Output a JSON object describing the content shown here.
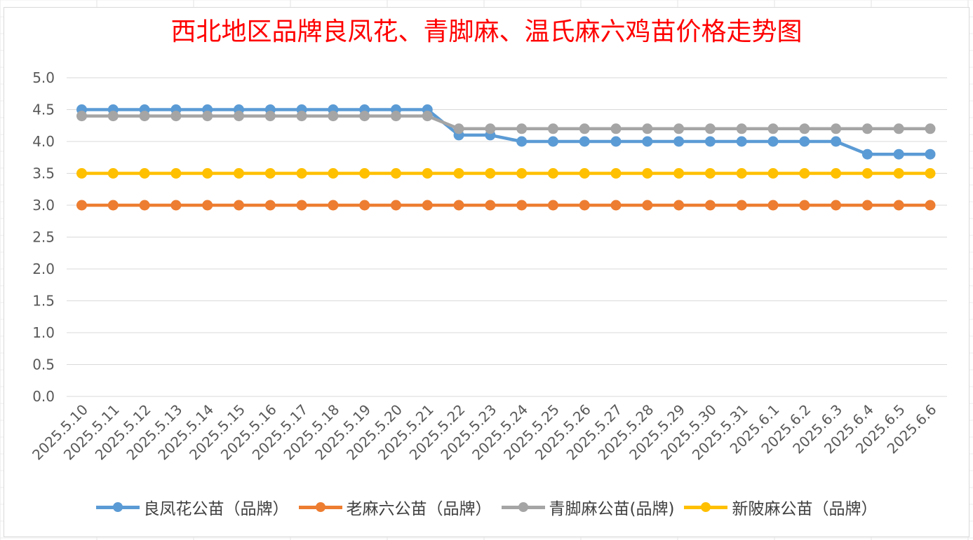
{
  "chart_data": {
    "type": "line",
    "title": "西北地区品牌良凤花、青脚麻、温氏麻六鸡苗价格走势图",
    "xlabel": "",
    "ylabel": "",
    "ylim": [
      0,
      5
    ],
    "yticks": [
      "0.0",
      "0.5",
      "1.0",
      "1.5",
      "2.0",
      "2.5",
      "3.0",
      "3.5",
      "4.0",
      "4.5",
      "5.0"
    ],
    "grid": true,
    "legend_position": "bottom",
    "categories": [
      "2025.5.10",
      "2025.5.11",
      "2025.5.12",
      "2025.5.13",
      "2025.5.14",
      "2025.5.15",
      "2025.5.16",
      "2025.5.17",
      "2025.5.18",
      "2025.5.19",
      "2025.5.20",
      "2025.5.21",
      "2025.5.22",
      "2025.5.23",
      "2025.5.24",
      "2025.5.25",
      "2025.5.26",
      "2025.5.27",
      "2025.5.28",
      "2025.5.29",
      "2025.5.30",
      "2025.5.31",
      "2025.6.1",
      "2025.6.2",
      "2025.6.3",
      "2025.6.4",
      "2025.6.5",
      "2025.6.6"
    ],
    "series": [
      {
        "name": "良凤花公苗（品牌）",
        "color": "#5b9bd5",
        "values": [
          4.5,
          4.5,
          4.5,
          4.5,
          4.5,
          4.5,
          4.5,
          4.5,
          4.5,
          4.5,
          4.5,
          4.5,
          4.1,
          4.1,
          4.0,
          4.0,
          4.0,
          4.0,
          4.0,
          4.0,
          4.0,
          4.0,
          4.0,
          4.0,
          4.0,
          3.8,
          3.8,
          3.8
        ]
      },
      {
        "name": "老麻六公苗（品牌）",
        "color": "#ed7d31",
        "values": [
          3.0,
          3.0,
          3.0,
          3.0,
          3.0,
          3.0,
          3.0,
          3.0,
          3.0,
          3.0,
          3.0,
          3.0,
          3.0,
          3.0,
          3.0,
          3.0,
          3.0,
          3.0,
          3.0,
          3.0,
          3.0,
          3.0,
          3.0,
          3.0,
          3.0,
          3.0,
          3.0,
          3.0
        ]
      },
      {
        "name": "青脚麻公苗(品牌)",
        "color": "#a5a5a5",
        "values": [
          4.4,
          4.4,
          4.4,
          4.4,
          4.4,
          4.4,
          4.4,
          4.4,
          4.4,
          4.4,
          4.4,
          4.4,
          4.2,
          4.2,
          4.2,
          4.2,
          4.2,
          4.2,
          4.2,
          4.2,
          4.2,
          4.2,
          4.2,
          4.2,
          4.2,
          4.2,
          4.2,
          4.2
        ]
      },
      {
        "name": "新陂麻公苗（品牌）",
        "color": "#ffc000",
        "values": [
          3.5,
          3.5,
          3.5,
          3.5,
          3.5,
          3.5,
          3.5,
          3.5,
          3.5,
          3.5,
          3.5,
          3.5,
          3.5,
          3.5,
          3.5,
          3.5,
          3.5,
          3.5,
          3.5,
          3.5,
          3.5,
          3.5,
          3.5,
          3.5,
          3.5,
          3.5,
          3.5,
          3.5
        ]
      }
    ]
  }
}
